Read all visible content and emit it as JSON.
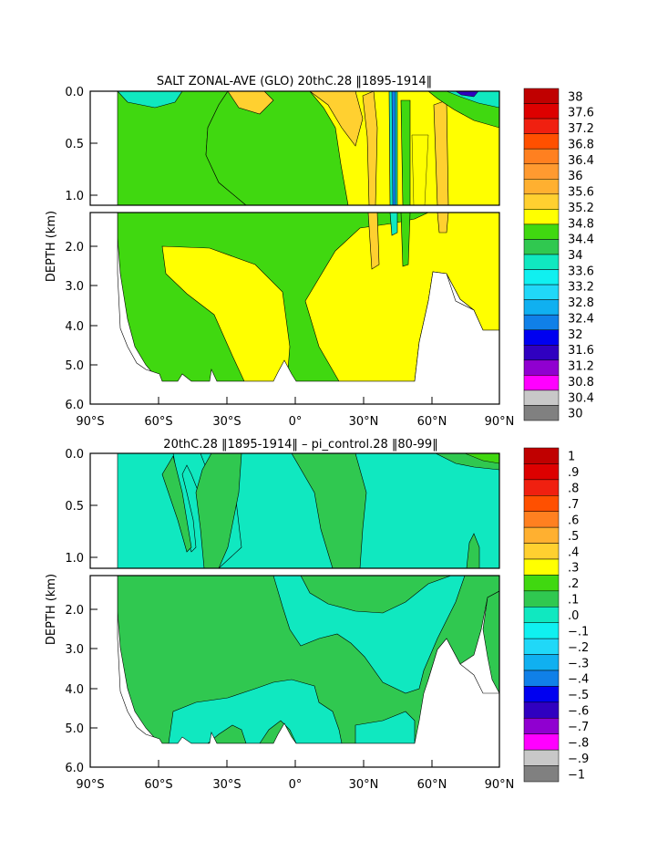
{
  "chart_data": [
    {
      "type": "heatmap",
      "title": "SALT ZONAL-AVE (GLO) 20thC.28 ‖1895-1914‖",
      "xlabel": "",
      "ylabel": "DEPTH (km)",
      "x_tick_labels": [
        "90°S",
        "60°S",
        "30°S",
        "0°",
        "30°N",
        "60°N",
        "90°N"
      ],
      "y_tick_labels": [
        "0.0",
        "0.5",
        "1.0",
        "2.0",
        "3.0",
        "4.0",
        "5.0",
        "6.0"
      ],
      "xlim": [
        -90,
        90
      ],
      "ylim": [
        0,
        6
      ],
      "colorbar_labels": [
        "38",
        "37.6",
        "37.2",
        "36.8",
        "36.4",
        "36",
        "35.6",
        "35.2",
        "34.8",
        "34.4",
        "34",
        "33.6",
        "33.2",
        "32.8",
        "32.4",
        "32",
        "31.6",
        "31.2",
        "30.8",
        "30.4",
        "30"
      ],
      "colorbar_colors": [
        "#c00000",
        "#dd0000",
        "#f02010",
        "#ff5000",
        "#ff8020",
        "#ff9a30",
        "#ffb030",
        "#ffd030",
        "#ffff00",
        "#40d810",
        "#30c850",
        "#10e8c0",
        "#10f0f0",
        "#20d8f8",
        "#10b0f0",
        "#1080e8",
        "#0000f0",
        "#3000c0",
        "#9000d0",
        "#ff00ff",
        "#c8c8c8",
        "#808080"
      ],
      "dominant_regions": [
        {
          "value": "34.4-34.8",
          "description": "southern and deep water"
        },
        {
          "value": "34.8-35.2",
          "description": "subtropical and North Atlantic interior"
        },
        {
          "value": "35.2-35.6",
          "description": "surface subtropics"
        }
      ]
    },
    {
      "type": "heatmap",
      "title": "20thC.28 ‖1895-1914‖ – pi_control.28 ‖80-99‖",
      "xlabel": "",
      "ylabel": "DEPTH (km)",
      "x_tick_labels": [
        "90°S",
        "60°S",
        "30°S",
        "0°",
        "30°N",
        "60°N",
        "90°N"
      ],
      "y_tick_labels": [
        "0.0",
        "0.5",
        "1.0",
        "2.0",
        "3.0",
        "4.0",
        "5.0",
        "6.0"
      ],
      "xlim": [
        -90,
        90
      ],
      "ylim": [
        0,
        6
      ],
      "colorbar_labels": [
        "1",
        ".9",
        ".8",
        ".7",
        ".6",
        ".5",
        ".4",
        ".3",
        ".2",
        ".1",
        ".0",
        "−.1",
        "−.2",
        "−.3",
        "−.4",
        "−.5",
        "−.6",
        "−.7",
        "−.8",
        "−.9",
        "−1"
      ],
      "colorbar_colors": [
        "#c00000",
        "#dd0000",
        "#f02010",
        "#ff5000",
        "#ff8020",
        "#ffb030",
        "#ffd030",
        "#ffff00",
        "#40d810",
        "#30c850",
        "#10e8c0",
        "#10f0f0",
        "#20d8f8",
        "#10b0f0",
        "#1080e8",
        "#0000f0",
        "#3000c0",
        "#9000d0",
        "#ff00ff",
        "#c8c8c8",
        "#808080"
      ],
      "dominant_regions": [
        {
          "value": "0.0-0.1",
          "description": "upper ocean and Southern Ocean deep"
        },
        {
          "value": "-0.1-0.0",
          "description": "mid-depth and surface subtropics"
        }
      ]
    }
  ]
}
